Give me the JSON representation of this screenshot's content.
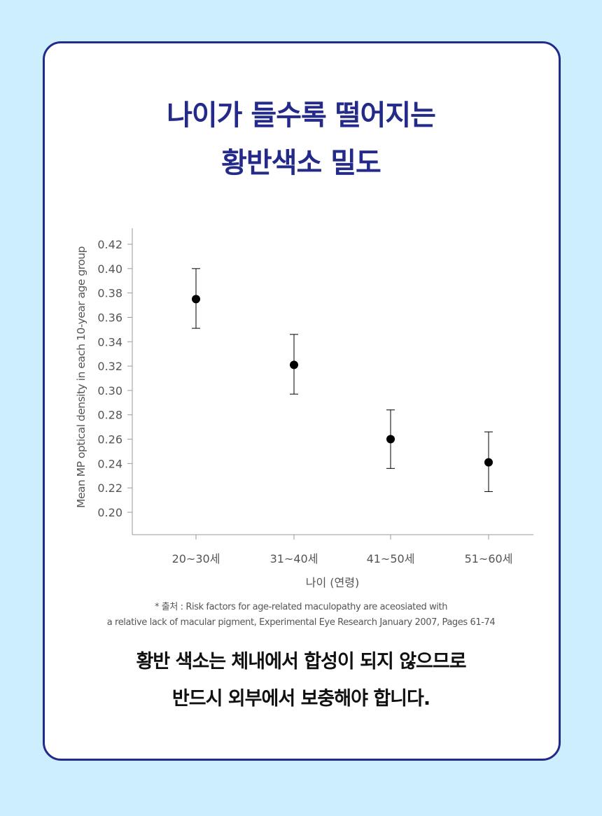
{
  "header": {
    "title_line1": "나이가 들수록 떨어지는",
    "title_line2": "황반색소 밀도"
  },
  "chart_data": {
    "type": "scatter",
    "error_bars": true,
    "categories": [
      "20~30세",
      "31~40세",
      "41~50세",
      "51~60세"
    ],
    "values": [
      0.375,
      0.321,
      0.26,
      0.241
    ],
    "error_low": [
      0.351,
      0.297,
      0.236,
      0.217
    ],
    "error_high": [
      0.4,
      0.346,
      0.284,
      0.266
    ],
    "yticks": [
      "0.20",
      "0.22",
      "0.24",
      "0.26",
      "0.28",
      "0.30",
      "0.32",
      "0.34",
      "0.36",
      "0.38",
      "0.40",
      "0.42"
    ],
    "ylim": [
      0.2,
      0.42
    ],
    "xlabel": "나이 (연령)",
    "ylabel": "Mean MP optical density in each 10-year age group",
    "grid": false,
    "marker_color": "#000000"
  },
  "source": {
    "line1": "* 출처 : Risk factors for age-related maculopathy are aceosiated with",
    "line2": "a relative lack of macular pigment, Experimental Eye Research January 2007, Pages 61-74"
  },
  "footer": {
    "line1": "황반 색소는 체내에서 합성이 되지 않으므로",
    "line2": "반드시 외부에서 보충해야 합니다."
  },
  "colors": {
    "background": "#cdeefd",
    "card_border": "#232a8a",
    "title": "#232a8a"
  }
}
